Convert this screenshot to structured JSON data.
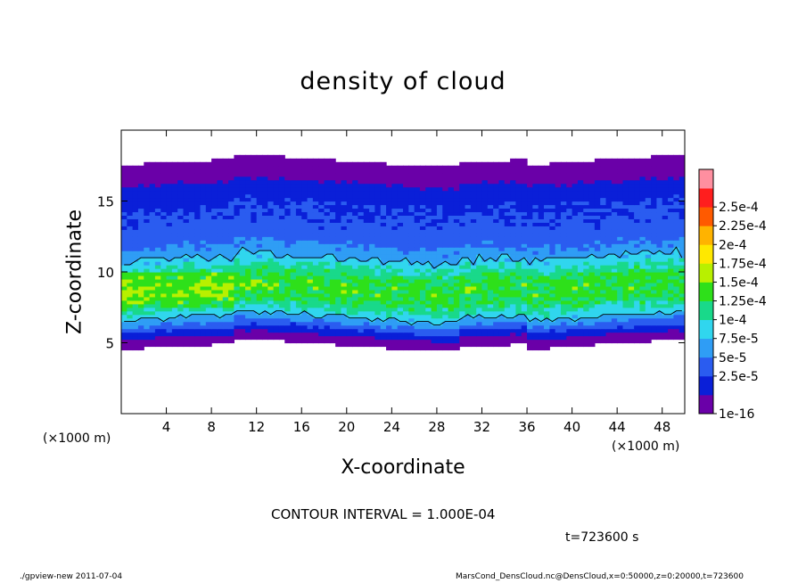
{
  "chart_data": {
    "type": "heatmap",
    "title": "density of cloud",
    "xlabel": "X-coordinate",
    "ylabel": "Z-coordinate",
    "x_unit_label": "(×1000 m)",
    "xlim": [
      0,
      50
    ],
    "ylim": [
      0,
      20
    ],
    "x_ticks": [
      "4",
      "8",
      "12",
      "16",
      "20",
      "24",
      "28",
      "32",
      "36",
      "40",
      "44",
      "48"
    ],
    "x_tick_values": [
      4,
      8,
      12,
      16,
      20,
      24,
      28,
      32,
      36,
      40,
      44,
      48
    ],
    "y_ticks": [
      "5",
      "10",
      "15"
    ],
    "y_tick_values": [
      5,
      10,
      15
    ],
    "colorbar": {
      "labels": [
        "1e-16",
        "2.5e-5",
        "5e-5",
        "7.5e-5",
        "1e-4",
        "1.25e-4",
        "1.5e-4",
        "1.75e-4",
        "2e-4",
        "2.25e-4",
        "2.5e-4"
      ],
      "colors": [
        "#6a00a8",
        "#0a1fd8",
        "#2a5cf0",
        "#2f9df5",
        "#30d6ee",
        "#19d98a",
        "#2ee01a",
        "#b8f000",
        "#ffe800",
        "#ffb300",
        "#ff5a00",
        "#ff1e1e",
        "#ff8fa0"
      ]
    },
    "cloud_profile": {
      "z": [
        4.8,
        5.4,
        6.0,
        6.5,
        7.0,
        7.5,
        8.0,
        8.5,
        9.0,
        9.5,
        10.0,
        10.5,
        11.0,
        11.5,
        12.0,
        12.5,
        13.0,
        14.0,
        15.0,
        15.8,
        16.5,
        17.2,
        17.8,
        18.4
      ],
      "density": [
        1e-16,
        2e-05,
        5e-05,
        8e-05,
        0.00011,
        0.00013,
        0.000145,
        0.000155,
        0.000155,
        0.00015,
        0.000135,
        0.000115,
        9.5e-05,
        8e-05,
        7e-05,
        6e-05,
        5.5e-05,
        5e-05,
        4.5e-05,
        3.5e-05,
        2e-05,
        1e-05,
        1e-16,
        1e-16
      ]
    }
  },
  "annotations": {
    "contour_interval": "CONTOUR INTERVAL = 1.000E-04",
    "time": "t=723600 s"
  },
  "footer": {
    "left": "./gpview-new   2011-07-04",
    "right": "MarsCond_DensCloud.nc@DensCloud,x=0:50000,z=0:20000,t=723600"
  }
}
